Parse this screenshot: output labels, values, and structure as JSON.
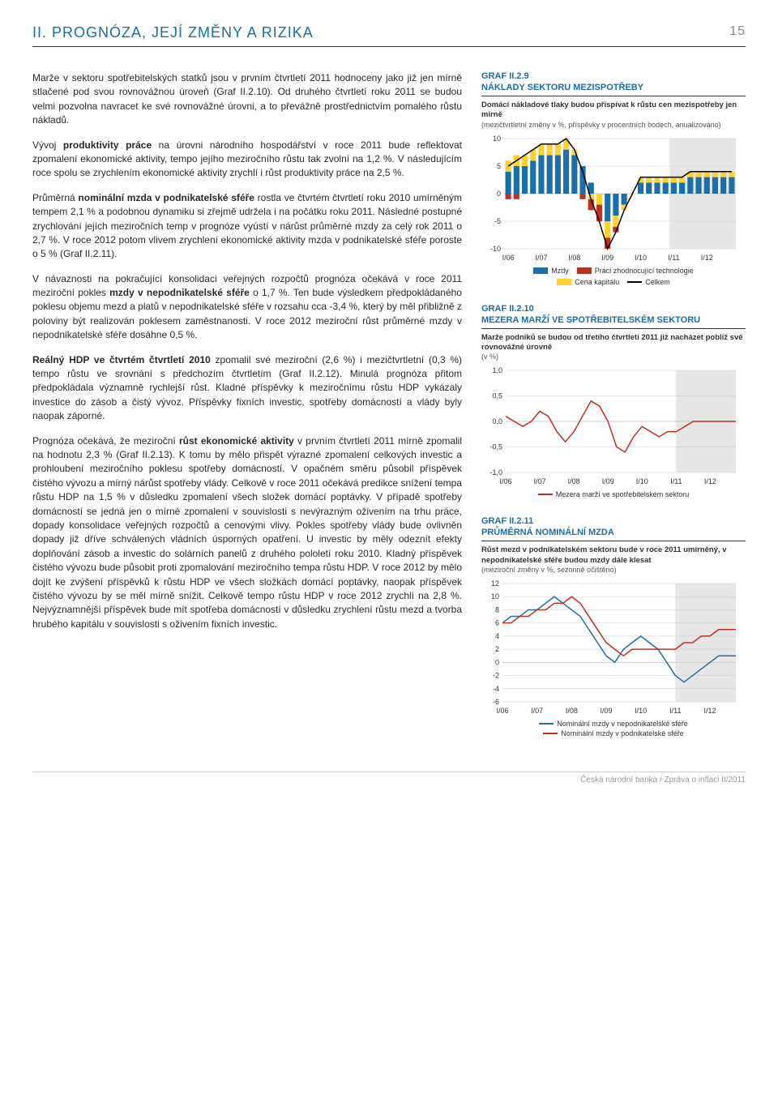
{
  "header": {
    "title": "II. PROGNÓZA, JEJÍ ZMĚNY A RIZIKA",
    "page_number": "15"
  },
  "paragraphs": {
    "p1a": "Marže v sektoru spotřebitelských statků jsou v prvním čtvrtletí 2011 hodnoceny jako již jen mírně stlačené pod svou rovnovážnou úroveň (Graf II.2.10). Od druhého čtvrtletí roku 2011 se budou velmi pozvolna navracet ke své rovnovážné úrovni, a to převážně prostřednictvím pomalého růstu nákladů.",
    "p2a": "Vývoj ",
    "p2b": "produktivity práce",
    "p2c": " na úrovni národního hospodářství v roce 2011 bude reflektovat zpomalení ekonomické aktivity, tempo jejího meziročního růstu tak zvolní na 1,2 %. V následujícím roce spolu se zrychlením ekonomické aktivity zrychlí i růst produktivity práce na 2,5 %.",
    "p3a": "Průměrná ",
    "p3b": "nominální mzda v podnikatelské sféře",
    "p3c": " rostla ve čtvrtém čtvrtletí roku 2010 umírněným tempem 2,1 % a podobnou dynamiku si zřejmě udržela i na počátku roku 2011. Následné postupné zrychlování jejích meziročních temp v prognóze vyústí v nárůst průměrné mzdy za celý rok 2011 o 2,7 %. V roce 2012 potom vlivem zrychlení ekonomické aktivity mzda v podnikatelské sféře poroste o 5 % (Graf II.2.11).",
    "p4a": "V návaznosti na pokračující konsolidaci veřejných rozpočtů prognóza očekává v roce 2011 meziroční pokles ",
    "p4b": "mzdy v nepodnikatelské sféře",
    "p4c": " o 1,7 %. Ten bude výsledkem předpokládaného poklesu objemu mezd a platů v nepodnikatelské sféře v rozsahu cca -3,4 %, který by měl přibližně z poloviny být realizován poklesem zaměstnanosti. V roce 2012 meziroční růst průměrné mzdy v nepodnikatelské sféře dosáhne 0,5 %.",
    "p5a": "Reálný HDP ve čtvrtém čtvrtletí 2010",
    "p5b": " zpomalil své meziroční (2,6 %) i mezičtvrtletní (0,3 %) tempo růstu ve srovnání s předchozím čtvrtletím (Graf II.2.12). Minulá prognóza přitom předpokládala významně rychlejší růst. Kladné příspěvky k meziročnímu růstu HDP vykázaly investice do zásob a čistý vývoz. Příspěvky fixních investic, spotřeby domácností a vlády byly naopak záporné.",
    "p6a": "Prognóza očekává, že meziroční ",
    "p6b": "růst ekonomické aktivity",
    "p6c": " v prvním čtvrtletí 2011 mírně zpomalil na hodnotu 2,3 % (Graf II.2.13). K tomu by mělo přispět výrazné zpomalení celkových investic a prohloubení meziročního poklesu spotřeby domácností. V opačném směru působil příspěvek čistého vývozu a mírný nárůst spotřeby vlády. Celkově v roce 2011 očekává predikce snížení tempa růstu HDP na 1,5 % v důsledku zpomalení všech složek domácí poptávky. V případě spotřeby domácností se jedná jen o mírné zpomalení v souvislosti s nevýrazným oživením na trhu práce, dopady konsolidace veřejných rozpočtů a cenovými vlivy. Pokles spotřeby vlády bude ovlivněn dopady již dříve schválených vládních úsporných opatření. U investic by měly odeznít efekty doplňování zásob a investic do solárních panelů z druhého pololetí roku 2010. Kladný příspěvek čistého vývozu bude působit proti zpomalování meziročního tempa růstu HDP. V roce 2012 by mělo dojít ke zvýšení příspěvků k růstu HDP ve všech složkách domácí poptávky, naopak příspěvek čistého vývozu by se měl mírně snížit. Celkově tempo růstu HDP v roce 2012 zrychlí na 2,8 %. Nejvýznamnější příspěvek bude mít spotřeba domácností v důsledku zrychlení růstu mezd a tvorba hrubého kapitálu v souvislosti s oživením fixních investic."
  },
  "chart1": {
    "graf_label": "GRAF II.2.9",
    "title": "NÁKLADY SEKTORU MEZISPOTŘEBY",
    "caption": "Domácí nákladové tlaky budou přispívat k růstu cen mezispotřeby jen mírně",
    "subcaption": "(mezičtvrtletní změny v %, příspěvky v procentních bodech, anualizováno)",
    "type": "stacked-bar-with-line",
    "ylim": [
      -10,
      10
    ],
    "yticks": [
      -10,
      -5,
      0,
      5,
      10
    ],
    "x_labels": [
      "I/06",
      "I/07",
      "I/08",
      "I/09",
      "I/10",
      "I/11",
      "I/12"
    ],
    "bar_color1": "#1b6fa8",
    "bar_color2": "#ffd030",
    "bar_color3": "#c03020",
    "line_color_total": "#000000",
    "forecast_fill": "#e6e6e6",
    "forecast_start": 5,
    "background": "#ffffff",
    "series": {
      "mzdy": [
        4,
        5,
        5,
        6,
        7,
        7,
        7,
        8,
        7,
        5,
        2,
        0,
        -5,
        -4,
        -2,
        0,
        2,
        2,
        2,
        2,
        2,
        2,
        3,
        3,
        3,
        3,
        3,
        3
      ],
      "kapital": [
        2,
        2,
        2,
        2,
        2,
        2,
        2,
        2,
        1,
        0,
        -1,
        -2,
        -3,
        -2,
        -1,
        0,
        1,
        1,
        1,
        1,
        1,
        1,
        1,
        1,
        1,
        1,
        1,
        1
      ],
      "tech": [
        -1,
        -1,
        0,
        0,
        0,
        0,
        0,
        0,
        0,
        -1,
        -2,
        -3,
        -2,
        -1,
        0,
        0,
        0,
        0,
        0,
        0,
        0,
        0,
        0,
        0,
        0,
        0,
        0,
        0
      ],
      "total": [
        5,
        6,
        7,
        8,
        9,
        9,
        9,
        10,
        8,
        4,
        -1,
        -5,
        -10,
        -7,
        -3,
        0,
        3,
        3,
        3,
        3,
        3,
        3,
        4,
        4,
        4,
        4,
        4,
        4
      ]
    },
    "legend": {
      "mzdy": "Mzdy",
      "kapital": "Cena kapitálu",
      "tech": "Práci zhodnocující technologie",
      "total": "Celkem"
    }
  },
  "chart2": {
    "graf_label": "GRAF II.2.10",
    "title": "MEZERA MARŽÍ VE SPOTŘEBITELSKÉM SEKTORU",
    "caption": "Marže podniků se budou od třetího čtvrtletí 2011 již nacházet poblíž své rovnovážné úrovně",
    "subcaption": "(v %)",
    "type": "line",
    "ylim": [
      -1.0,
      1.0
    ],
    "yticks": [
      "-1,0",
      "-0,5",
      "0,0",
      "0,5",
      "1,0"
    ],
    "x_labels": [
      "I/06",
      "I/07",
      "I/08",
      "I/09",
      "I/10",
      "I/11",
      "I/12"
    ],
    "line_color": "#c03020",
    "forecast_fill": "#e6e6e6",
    "background": "#ffffff",
    "values": [
      0.1,
      0.0,
      -0.1,
      0.0,
      0.2,
      0.1,
      -0.2,
      -0.4,
      -0.2,
      0.1,
      0.4,
      0.3,
      0.0,
      -0.5,
      -0.6,
      -0.3,
      -0.1,
      -0.2,
      -0.3,
      -0.2,
      -0.2,
      -0.1,
      0.0,
      0.0,
      0.0,
      0.0,
      0.0,
      0.0
    ],
    "legend": {
      "label": "Mezera marží ve spotřebitelském sektoru"
    }
  },
  "chart3": {
    "graf_label": "GRAF II.2.11",
    "title": "PRŮMĚRNÁ NOMINÁLNÍ MZDA",
    "caption": "Růst mezd v podnikatelském sektoru bude v roce 2011 umírněný, v nepodnikatelské sféře budou mzdy dále klesat",
    "subcaption": "(meziroční změny v %, sezonně očištěno)",
    "type": "line",
    "ylim": [
      -6,
      12
    ],
    "yticks": [
      -6,
      -4,
      -2,
      0,
      2,
      4,
      6,
      8,
      10,
      12
    ],
    "x_labels": [
      "I/06",
      "I/07",
      "I/08",
      "I/09",
      "I/10",
      "I/11",
      "I/12"
    ],
    "line_color1": "#1b6fa8",
    "line_color2": "#c03020",
    "forecast_fill": "#e6e6e6",
    "background": "#ffffff",
    "series1": [
      6,
      7,
      7,
      8,
      8,
      9,
      10,
      9,
      8,
      7,
      5,
      3,
      1,
      0,
      2,
      3,
      4,
      3,
      2,
      0,
      -2,
      -3,
      -2,
      -1,
      0,
      1,
      1,
      1
    ],
    "series2": [
      6,
      6,
      7,
      7,
      8,
      8,
      9,
      9,
      10,
      9,
      7,
      5,
      3,
      2,
      1,
      2,
      2,
      2,
      2,
      2,
      2,
      3,
      3,
      4,
      4,
      5,
      5,
      5
    ],
    "legend": {
      "s1": "Nominální mzdy v nepodnikatelské sféře",
      "s2": "Nominální mzdy v podnikatelské sféře"
    }
  },
  "footer": "Česká národní banka / Zpráva o inflaci II/2011"
}
